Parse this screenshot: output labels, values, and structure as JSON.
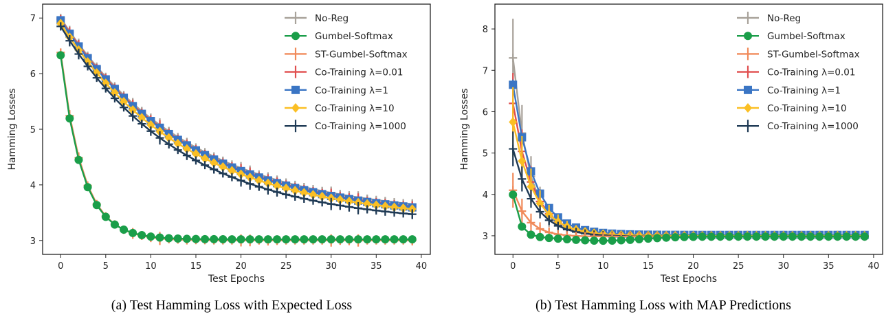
{
  "colors": {
    "No-Reg": "#a8a29a",
    "Gumbel-Softmax": "#1a9e49",
    "ST-Gumbel-Softmax": "#f08a5a",
    "Co-Training 0.01": "#e04f4f",
    "Co-Training 1": "#3a75c4",
    "Co-Training 10": "#fbbf24",
    "Co-Training 1000": "#1f3a55"
  },
  "captions": {
    "a": "(a) Test Hamming Loss with Expected Loss",
    "b": "(b) Test Hamming Loss with MAP Predictions"
  },
  "chart_data": [
    {
      "type": "line",
      "title": "",
      "xlabel": "Test Epochs",
      "ylabel": "Hamming Losses",
      "xlim": [
        -2,
        41
      ],
      "ylim": [
        2.75,
        7.25
      ],
      "xticks": [
        0,
        5,
        10,
        15,
        20,
        25,
        30,
        35,
        40
      ],
      "yticks": [
        3,
        4,
        5,
        6,
        7
      ],
      "legend_position": "top-right",
      "grid": false,
      "series": [
        {
          "name": "No-Reg",
          "marker": "plus",
          "start": 7.0,
          "end": 3.42,
          "rate": 0.07,
          "err": 0.12
        },
        {
          "name": "Gumbel-Softmax",
          "marker": "circle",
          "start": 6.33,
          "end": 3.02,
          "rate": 0.42,
          "err": 0.05
        },
        {
          "name": "ST-Gumbel-Softmax",
          "marker": "plus",
          "start": 6.38,
          "end": 3.0,
          "rate": 0.41,
          "err": 0.12
        },
        {
          "name": "Co-Training λ=0.01",
          "marker": "plus",
          "start": 6.98,
          "end": 3.38,
          "rate": 0.07,
          "err": 0.12
        },
        {
          "name": "Co-Training λ=1",
          "marker": "square",
          "start": 6.96,
          "end": 3.36,
          "rate": 0.07,
          "err": 0.06
        },
        {
          "name": "Co-Training λ=10",
          "marker": "diamond",
          "start": 6.9,
          "end": 3.35,
          "rate": 0.072,
          "err": 0.06
        },
        {
          "name": "Co-Training λ=1000",
          "marker": "plus",
          "start": 6.85,
          "end": 3.28,
          "rate": 0.075,
          "err": 0.12
        }
      ]
    },
    {
      "type": "line",
      "title": "",
      "xlabel": "Test Epochs",
      "ylabel": "Hamming Losses",
      "xlim": [
        -2,
        41
      ],
      "ylim": [
        2.55,
        8.6
      ],
      "xticks": [
        0,
        5,
        10,
        15,
        20,
        25,
        30,
        35,
        40
      ],
      "yticks": [
        3,
        4,
        5,
        6,
        7,
        8
      ],
      "legend_position": "top-right",
      "grid": false,
      "series": [
        {
          "name": "No-Reg",
          "marker": "plus",
          "start": 7.3,
          "end": 3.0,
          "rate": 0.55,
          "err": 0.9
        },
        {
          "name": "Gumbel-Softmax",
          "marker": "circle",
          "start": 4.0,
          "end": 2.9,
          "rate": 0.5,
          "err": 0.05,
          "dip": true
        },
        {
          "name": "ST-Gumbel-Softmax",
          "marker": "plus",
          "start": 4.1,
          "end": 2.98,
          "rate": 0.6,
          "err": 0.4
        },
        {
          "name": "Co-Training λ=0.01",
          "marker": "plus",
          "start": 6.2,
          "end": 3.0,
          "rate": 0.45,
          "err": 0.7
        },
        {
          "name": "Co-Training λ=1",
          "marker": "square",
          "start": 6.65,
          "end": 3.02,
          "rate": 0.43,
          "err": 0.12
        },
        {
          "name": "Co-Training λ=10",
          "marker": "diamond",
          "start": 5.75,
          "end": 3.0,
          "rate": 0.42,
          "err": 0.8
        },
        {
          "name": "Co-Training λ=1000",
          "marker": "plus",
          "start": 5.1,
          "end": 2.98,
          "rate": 0.42,
          "err": 0.4
        }
      ]
    }
  ]
}
